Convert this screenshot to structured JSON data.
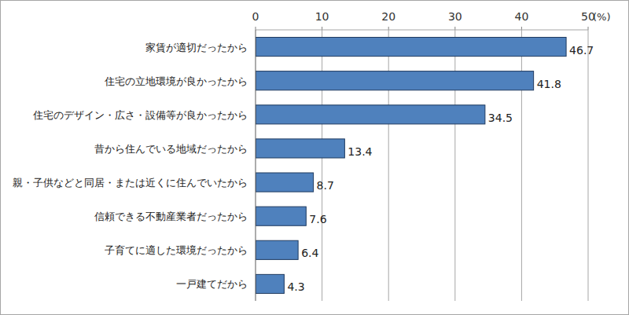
{
  "chart_data": {
    "type": "bar",
    "orientation": "horizontal",
    "xlabel": "(%)",
    "categories": [
      "家賃が適切だったから",
      "住宅の立地環境が良かったから",
      "住宅のデザイン・広さ・設備等が良かったから",
      "昔から住んでいる地域だったから",
      "親・子供などと同居・または近くに住んでいたから",
      "信頼できる不動産業者だったから",
      "子育てに適した環境だったから",
      "一戸建てだから"
    ],
    "values": [
      46.7,
      41.8,
      34.5,
      13.4,
      8.7,
      7.6,
      6.4,
      4.3
    ],
    "color": "#4f81bd",
    "xlim": [
      0,
      50
    ],
    "xticks": [
      0,
      10,
      20,
      30,
      40,
      50
    ],
    "grid": true,
    "data_labels": true
  }
}
